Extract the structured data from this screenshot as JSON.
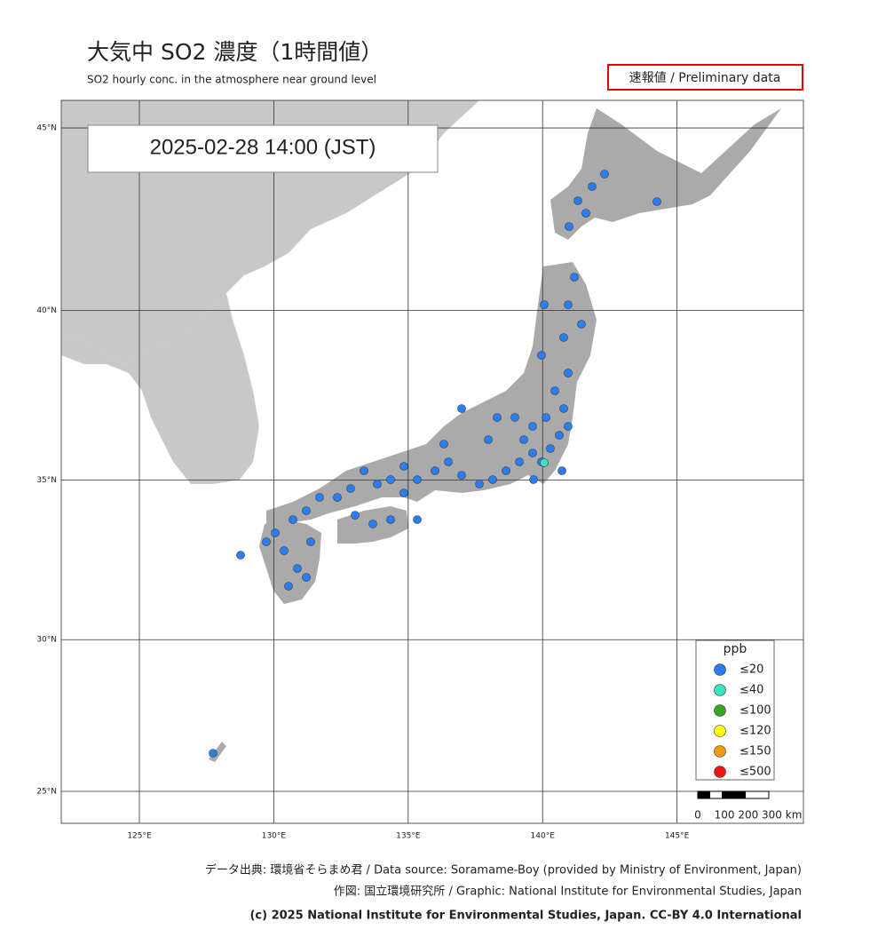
{
  "header": {
    "title": "大気中 SO2  濃度（1時間値）",
    "subtitle": "SO2 hourly conc. in the atmosphere near ground level",
    "badge": "速報値 / Preliminary data"
  },
  "timestamp": "2025-02-28  14:00 (JST)",
  "grid": {
    "lat": [
      {
        "value": 45,
        "label": "45°N"
      },
      {
        "value": 40,
        "label": "40°N"
      },
      {
        "value": 35,
        "label": "35°N"
      },
      {
        "value": 30,
        "label": "30°N"
      },
      {
        "value": 25,
        "label": "25°N"
      }
    ],
    "lon": [
      {
        "value": 125,
        "label": "125°E"
      },
      {
        "value": 130,
        "label": "130°E"
      },
      {
        "value": 135,
        "label": "135°E"
      },
      {
        "value": 140,
        "label": "140°E"
      },
      {
        "value": 145,
        "label": "145°E"
      }
    ]
  },
  "legend": {
    "title": "ppb",
    "items": [
      {
        "label": "≤20",
        "color": "#2a7ff0"
      },
      {
        "label": "≤40",
        "color": "#3de3c3"
      },
      {
        "label": "≤100",
        "color": "#35a81f"
      },
      {
        "label": "≤120",
        "color": "#ffff10"
      },
      {
        "label": "≤150",
        "color": "#f09a10"
      },
      {
        "label": "≤500",
        "color": "#f01515"
      }
    ]
  },
  "scale_bar": {
    "labels": [
      "0",
      "100 200 300 km"
    ]
  },
  "footer": [
    "データ出典: 環境省そらまめ君 / Data source: Soramame-Boy (provided by Ministry of Environment, Japan)",
    "作図: 国立環境研究所 / Graphic: National Institute for Environmental Studies, Japan",
    "(c) 2025 National Institute for Environmental Studies, Japan. CC-BY 4.0 International"
  ]
}
